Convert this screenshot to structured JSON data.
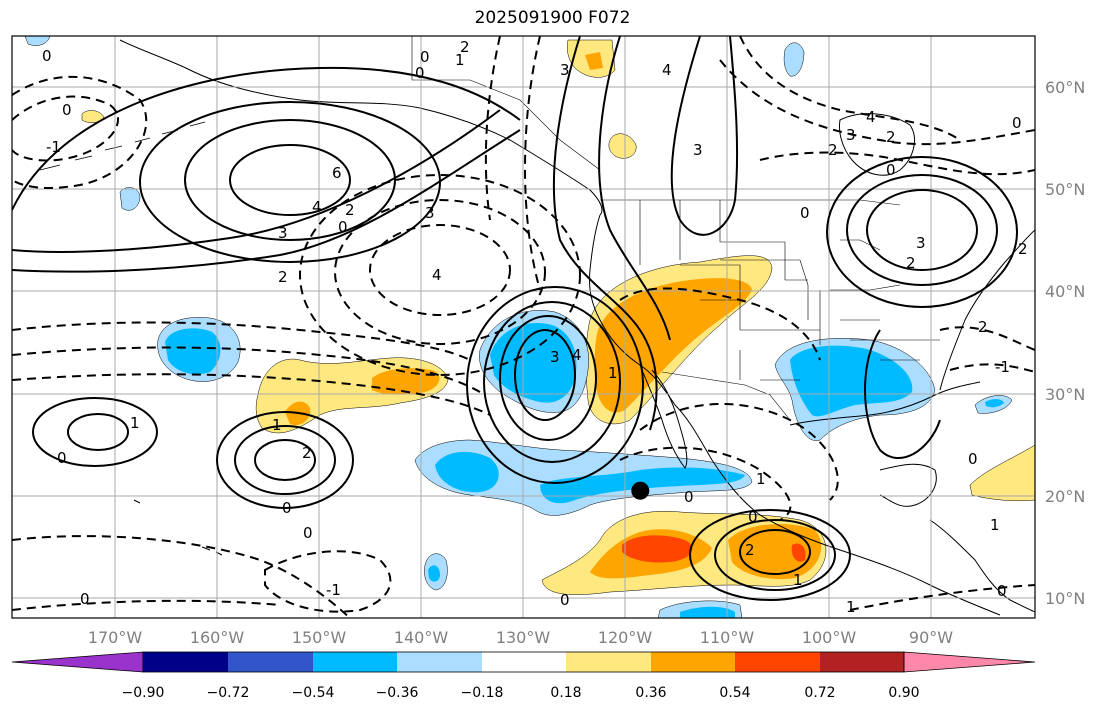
{
  "title": "2025091900 F072",
  "latitude_labels": [
    "60°N",
    "50°N",
    "40°N",
    "30°N",
    "20°N",
    "10°N"
  ],
  "longitude_labels": [
    "170°W",
    "160°W",
    "150°W",
    "140°W",
    "130°W",
    "120°W",
    "110°W",
    "100°W",
    "90°W"
  ],
  "colorbar": {
    "ticks": [
      "−0.90",
      "−0.72",
      "−0.54",
      "−0.36",
      "−0.18",
      "0.18",
      "0.36",
      "0.54",
      "0.72",
      "0.90"
    ],
    "colors": [
      "#9933cc",
      "#000088",
      "#3355cc",
      "#00bbff",
      "#aaddff",
      "#ffffff",
      "#ffe880",
      "#ffa500",
      "#ff4500",
      "#b22222",
      "#ff88aa"
    ]
  },
  "contour_labels": [
    "0",
    "2",
    "0",
    "1",
    "0",
    "-1",
    "0",
    "6",
    "4",
    "3",
    "3",
    "2",
    "0",
    "2",
    "4",
    "3",
    "4",
    "3",
    "4",
    "3",
    "0",
    "2",
    "4",
    "3",
    "2",
    "3",
    "2",
    "0",
    "2",
    "0",
    "-1",
    "2",
    "1",
    "0",
    "1",
    "2",
    "0",
    "0",
    "1",
    "0",
    "0",
    "1",
    "0",
    "-1",
    "0",
    "1",
    "2",
    "1",
    "1",
    "0",
    "0"
  ],
  "marker": {
    "lon": -118.5,
    "lat": 20.5
  }
}
